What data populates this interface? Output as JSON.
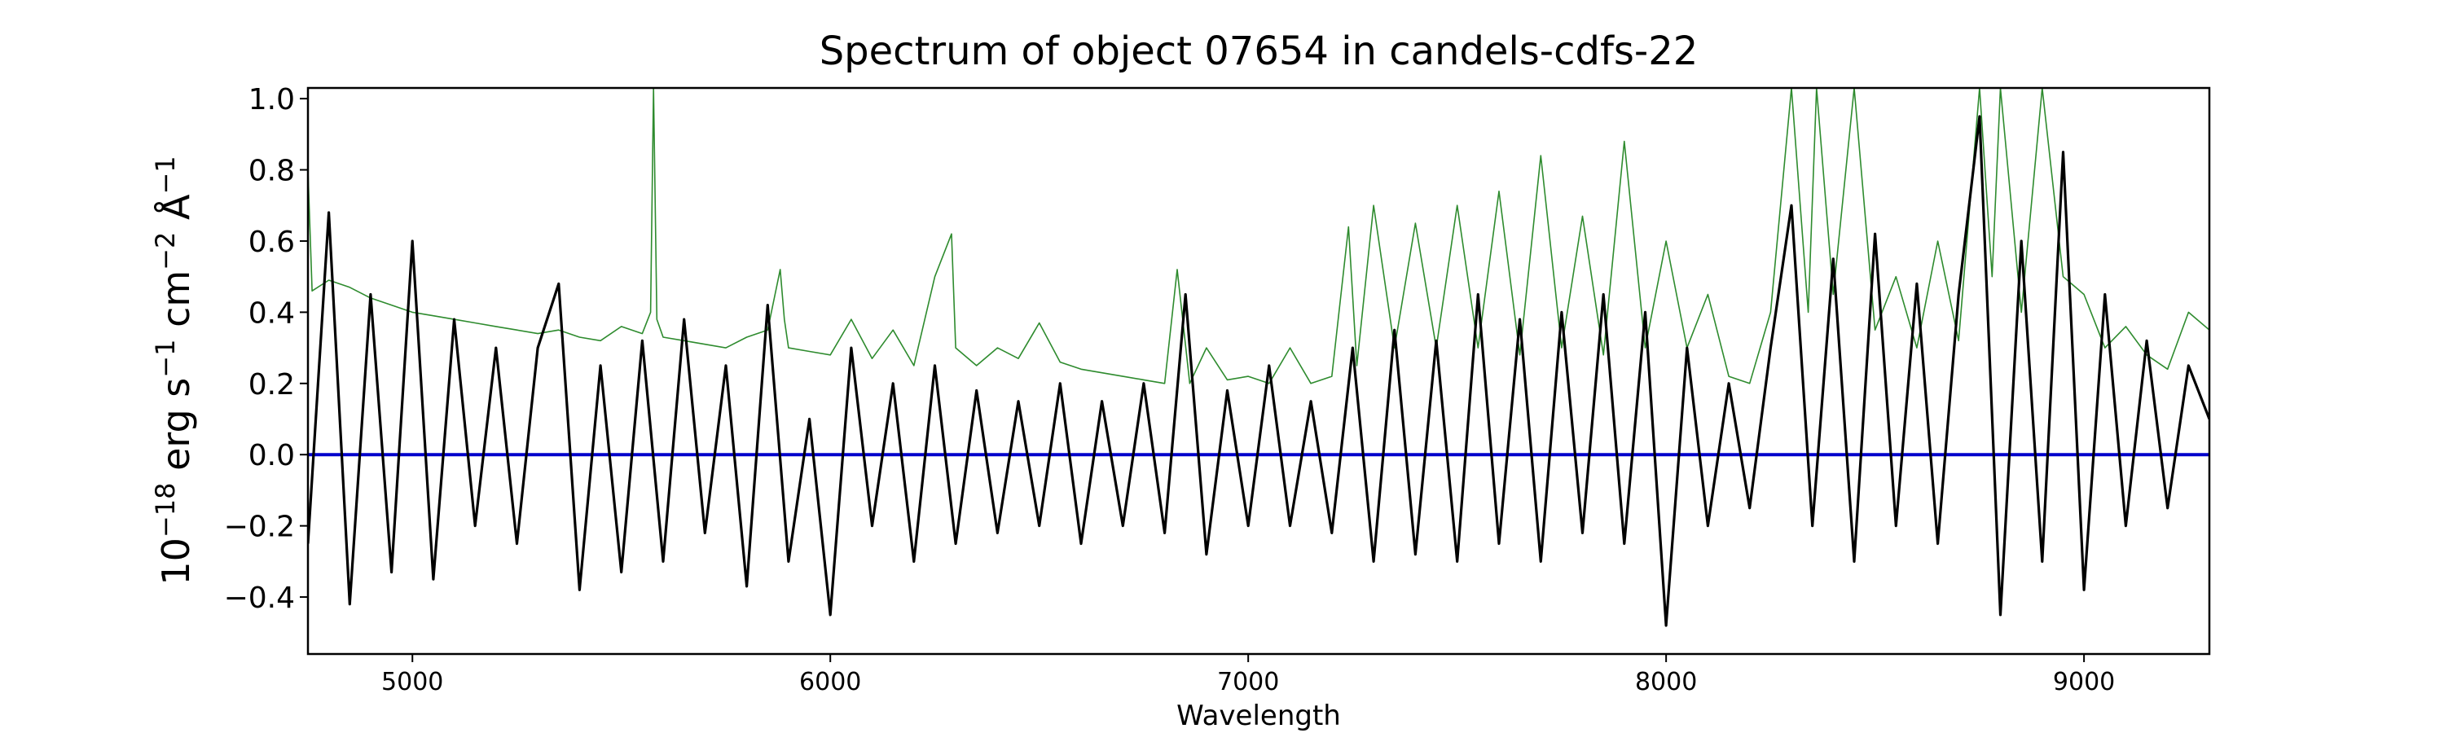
{
  "chart_data": {
    "type": "line",
    "title": "Spectrum of object 07654 in candels-cdfs-22",
    "xlabel": "Wavelength",
    "ylabel_base": "10",
    "ylabel_exp": "−18",
    "ylabel_units": [
      {
        "text": "erg s",
        "sup": "−1"
      },
      {
        "text": "cm",
        "sup": "−2"
      },
      {
        "text": "Å",
        "sup": "−1"
      }
    ],
    "xlim": [
      4750,
      9300
    ],
    "ylim": [
      -0.56,
      1.03
    ],
    "x_ticks": [
      5000,
      6000,
      7000,
      8000,
      9000
    ],
    "x_tick_labels": [
      "5000",
      "6000",
      "7000",
      "8000",
      "9000"
    ],
    "y_ticks": [
      -0.4,
      -0.2,
      0.0,
      0.2,
      0.4,
      0.6,
      0.8,
      1.0
    ],
    "y_tick_labels": [
      "−0.4",
      "−0.2",
      "0.0",
      "0.2",
      "0.4",
      "0.6",
      "0.8",
      "1.0"
    ],
    "grid": false,
    "colors": {
      "flux": "#000000",
      "error": "#2e8b2e",
      "zero": "#0000cc"
    },
    "series": [
      {
        "role": "flux",
        "x": [
          4750,
          4800,
          4850,
          4900,
          4950,
          5000,
          5050,
          5100,
          5150,
          5200,
          5250,
          5300,
          5350,
          5400,
          5450,
          5500,
          5550,
          5600,
          5650,
          5700,
          5750,
          5800,
          5850,
          5900,
          5950,
          6000,
          6050,
          6100,
          6150,
          6200,
          6250,
          6300,
          6350,
          6400,
          6450,
          6500,
          6550,
          6600,
          6650,
          6700,
          6750,
          6800,
          6850,
          6900,
          6950,
          7000,
          7050,
          7100,
          7150,
          7200,
          7250,
          7300,
          7350,
          7400,
          7450,
          7500,
          7550,
          7600,
          7650,
          7700,
          7750,
          7800,
          7850,
          7900,
          7950,
          8000,
          8050,
          8100,
          8150,
          8200,
          8250,
          8300,
          8350,
          8400,
          8450,
          8500,
          8550,
          8600,
          8650,
          8700,
          8750,
          8800,
          8850,
          8900,
          8950,
          9000,
          9050,
          9100,
          9150,
          9200,
          9250,
          9300
        ],
        "y": [
          -0.25,
          0.68,
          -0.42,
          0.45,
          -0.33,
          0.6,
          -0.35,
          0.38,
          -0.2,
          0.3,
          -0.25,
          0.3,
          0.48,
          -0.38,
          0.25,
          -0.33,
          0.32,
          -0.3,
          0.38,
          -0.22,
          0.25,
          -0.37,
          0.42,
          -0.3,
          0.1,
          -0.45,
          0.3,
          -0.2,
          0.2,
          -0.3,
          0.25,
          -0.25,
          0.18,
          -0.22,
          0.15,
          -0.2,
          0.2,
          -0.25,
          0.15,
          -0.2,
          0.2,
          -0.22,
          0.45,
          -0.28,
          0.18,
          -0.2,
          0.25,
          -0.2,
          0.15,
          -0.22,
          0.3,
          -0.3,
          0.35,
          -0.28,
          0.32,
          -0.3,
          0.45,
          -0.25,
          0.38,
          -0.3,
          0.4,
          -0.22,
          0.45,
          -0.25,
          0.4,
          -0.48,
          0.3,
          -0.2,
          0.2,
          -0.15,
          0.3,
          0.7,
          -0.2,
          0.55,
          -0.3,
          0.62,
          -0.2,
          0.48,
          -0.25,
          0.45,
          0.95,
          -0.45,
          0.6,
          -0.3,
          0.85,
          -0.38,
          0.45,
          -0.2,
          0.32,
          -0.15,
          0.25,
          0.1
        ]
      },
      {
        "role": "error",
        "x": [
          4750,
          4760,
          4800,
          4850,
          4900,
          4950,
          5000,
          5050,
          5100,
          5150,
          5200,
          5250,
          5300,
          5350,
          5400,
          5450,
          5500,
          5550,
          5570,
          5577,
          5585,
          5600,
          5650,
          5700,
          5750,
          5800,
          5850,
          5880,
          5890,
          5900,
          5950,
          6000,
          6050,
          6100,
          6150,
          6200,
          6250,
          6290,
          6300,
          6350,
          6400,
          6450,
          6500,
          6550,
          6600,
          6650,
          6700,
          6750,
          6800,
          6830,
          6860,
          6900,
          6950,
          7000,
          7050,
          7100,
          7150,
          7200,
          7240,
          7260,
          7300,
          7350,
          7400,
          7450,
          7500,
          7550,
          7600,
          7650,
          7700,
          7750,
          7800,
          7850,
          7900,
          7950,
          8000,
          8050,
          8100,
          8150,
          8200,
          8250,
          8300,
          8340,
          8360,
          8400,
          8450,
          8500,
          8550,
          8600,
          8650,
          8700,
          8750,
          8780,
          8800,
          8850,
          8900,
          8950,
          9000,
          9050,
          9100,
          9150,
          9200,
          9250,
          9300
        ],
        "y": [
          0.8,
          0.46,
          0.49,
          0.47,
          0.44,
          0.42,
          0.4,
          0.39,
          0.38,
          0.37,
          0.36,
          0.35,
          0.34,
          0.35,
          0.33,
          0.32,
          0.36,
          0.34,
          0.4,
          1.03,
          0.38,
          0.33,
          0.32,
          0.31,
          0.3,
          0.33,
          0.35,
          0.52,
          0.38,
          0.3,
          0.29,
          0.28,
          0.38,
          0.27,
          0.35,
          0.25,
          0.5,
          0.62,
          0.3,
          0.25,
          0.3,
          0.27,
          0.37,
          0.26,
          0.24,
          0.23,
          0.22,
          0.21,
          0.2,
          0.52,
          0.2,
          0.3,
          0.21,
          0.22,
          0.2,
          0.3,
          0.2,
          0.22,
          0.64,
          0.25,
          0.7,
          0.3,
          0.65,
          0.3,
          0.7,
          0.3,
          0.74,
          0.28,
          0.84,
          0.3,
          0.67,
          0.28,
          0.88,
          0.3,
          0.6,
          0.3,
          0.45,
          0.22,
          0.2,
          0.4,
          1.03,
          0.4,
          1.03,
          0.45,
          1.03,
          0.35,
          0.5,
          0.3,
          0.6,
          0.32,
          1.03,
          0.5,
          1.03,
          0.4,
          1.03,
          0.5,
          0.45,
          0.3,
          0.36,
          0.28,
          0.24,
          0.4,
          0.35
        ]
      },
      {
        "role": "zero",
        "x": [
          4750,
          9300
        ],
        "y": [
          0,
          0
        ]
      }
    ]
  }
}
